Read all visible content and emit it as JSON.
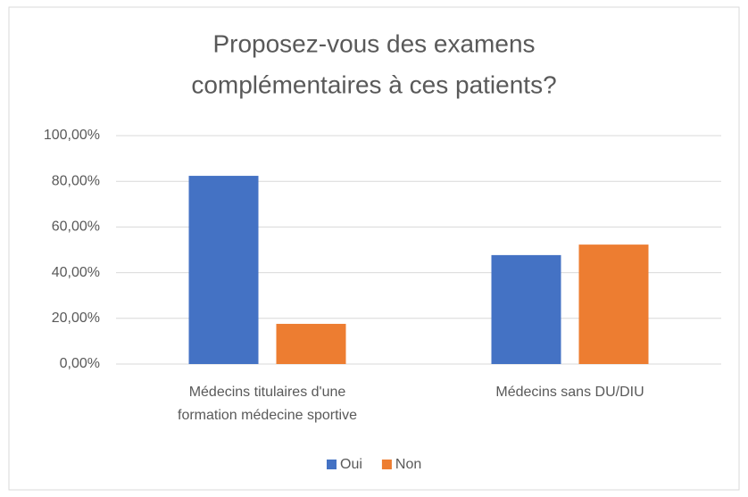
{
  "chart_data": {
    "type": "bar",
    "title": [
      "Proposez-vous des examens",
      "complémentaires à ces patients?"
    ],
    "categories": [
      [
        "Médecins titulaires d'une",
        "formation médecine sportive"
      ],
      [
        "Médecins sans DU/DIU"
      ]
    ],
    "series": [
      {
        "name": "Oui",
        "color": "#4472c4",
        "values": [
          82.4,
          47.7
        ]
      },
      {
        "name": "Non",
        "color": "#ed7d31",
        "values": [
          17.6,
          52.3
        ]
      }
    ],
    "ylim": [
      0,
      100
    ],
    "yticks": [
      {
        "value": 0,
        "label": "0,00%"
      },
      {
        "value": 20,
        "label": "20,00%"
      },
      {
        "value": 40,
        "label": "40,00%"
      },
      {
        "value": 60,
        "label": "60,00%"
      },
      {
        "value": 80,
        "label": "80,00%"
      },
      {
        "value": 100,
        "label": "100,00%"
      }
    ],
    "grid": true,
    "legend": "bottom"
  }
}
